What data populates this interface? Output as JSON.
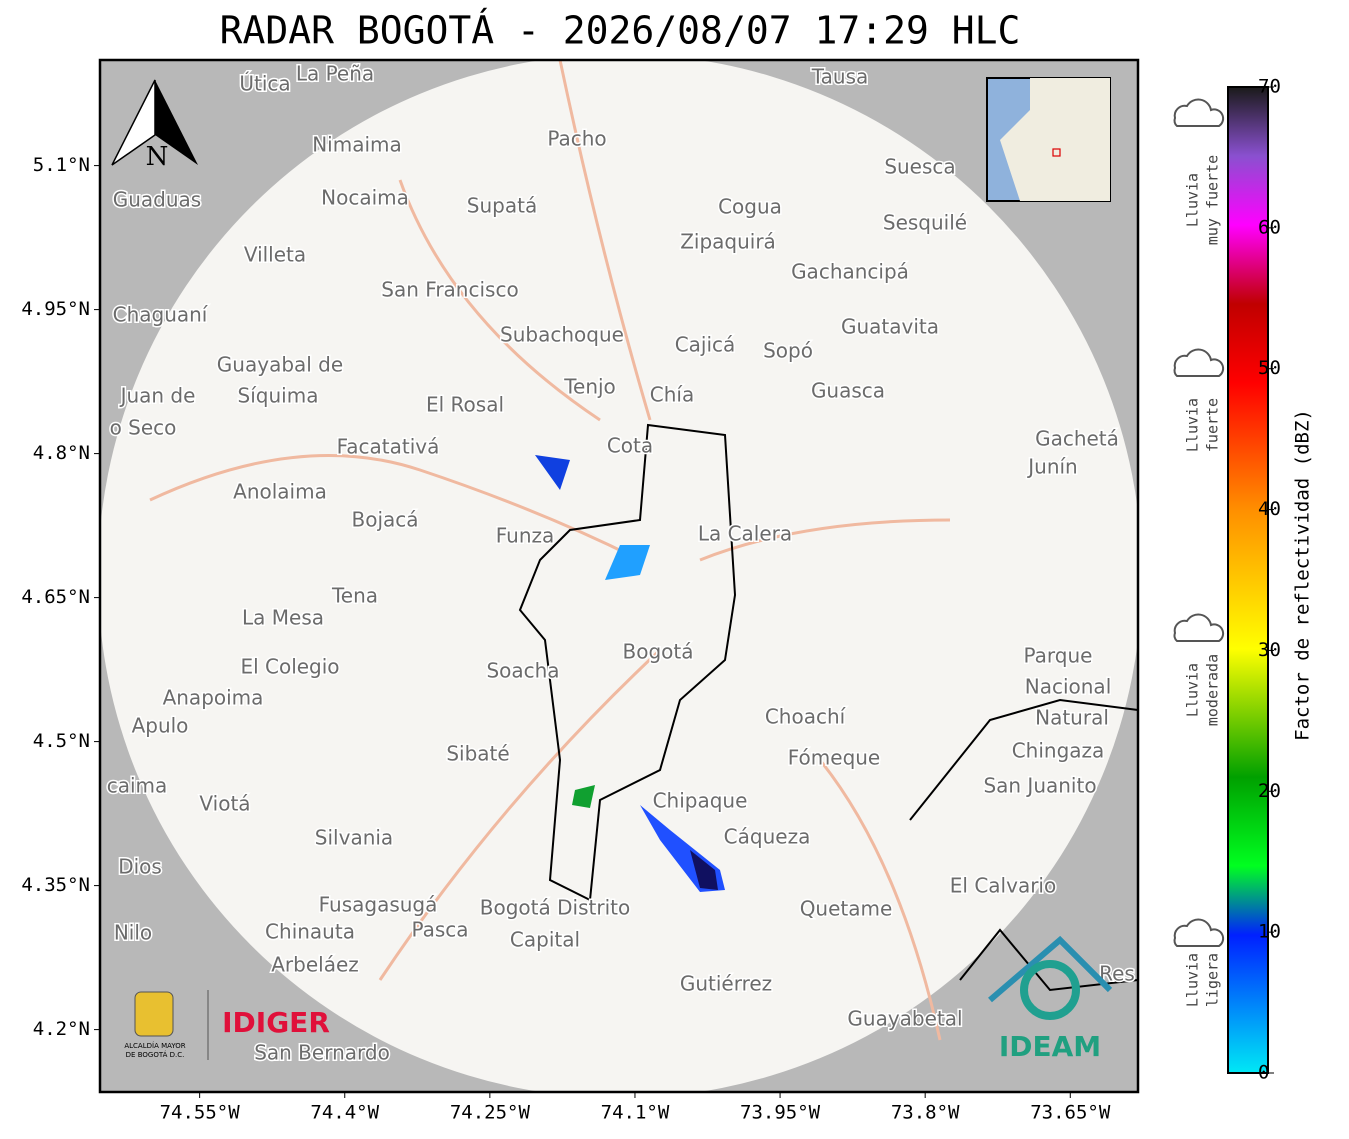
{
  "title": "RADAR BOGOTÁ - 2026/08/07 17:29 HLC",
  "north_label": "N",
  "map": {
    "xlim": [
      -74.653,
      -73.58
    ],
    "ylim": [
      4.135,
      5.21
    ],
    "xticks": [
      {
        "value": -74.55,
        "label": "74.55°W"
      },
      {
        "value": -74.4,
        "label": "74.4°W"
      },
      {
        "value": -74.25,
        "label": "74.25°W"
      },
      {
        "value": -74.1,
        "label": "74.1°W"
      },
      {
        "value": -73.95,
        "label": "73.95°W"
      },
      {
        "value": -73.8,
        "label": "73.8°W"
      },
      {
        "value": -73.65,
        "label": "73.65°W"
      }
    ],
    "yticks": [
      {
        "value": 5.1,
        "label": "5.1°N"
      },
      {
        "value": 4.95,
        "label": "4.95°N"
      },
      {
        "value": 4.8,
        "label": "4.8°N"
      },
      {
        "value": 4.65,
        "label": "4.65°N"
      },
      {
        "value": 4.5,
        "label": "4.5°N"
      },
      {
        "value": 4.35,
        "label": "4.35°N"
      },
      {
        "value": 4.2,
        "label": "4.2°N"
      }
    ],
    "grid": true
  },
  "places": [
    "Útica",
    "La Peña",
    "Tausa",
    "Pacho",
    "Nimaima",
    "Guaduas",
    "Nocaima",
    "Supatá",
    "Cogua",
    "Suesca",
    "Sesquilé",
    "Villeta",
    "Zipaquirá",
    "Gachancipá",
    "San Francisco",
    "Chaguaní",
    "Subachoque",
    "Cajicá",
    "Sopó",
    "Guatavita",
    "Guayabal de",
    "Síquima",
    "Juan de",
    "Tenjo",
    "Chía",
    "El Rosal",
    "Guasca",
    "o Seco",
    "Facatativá",
    "Cota",
    "Gachetá",
    "Junín",
    "Anolaima",
    "Bojacá",
    "Funza",
    "La Calera",
    "Tena",
    "La Mesa",
    "Bogotá",
    "Soacha",
    "Parque",
    "Nacional",
    "Natural",
    "Chingaza",
    "El Colegio",
    "Anapoima",
    "Apulo",
    "Choachí",
    "Sibaté",
    "Fómeque",
    "San Juanito",
    "caima",
    "Viotá",
    "Chipaque",
    "Silvania",
    "Cáqueza",
    "Dios",
    "El Calvario",
    "Fusagasugá",
    "Bogotá Distrito",
    "Capital",
    "Quetame",
    "Nilo",
    "Chinauta",
    "Pasca",
    "Arbeláez",
    "Res",
    "Gutiérrez",
    "Guayabetal",
    "San Bernardo"
  ],
  "colorbar": {
    "label": "Factor de reflectividad (dBZ)",
    "lim": [
      0,
      70
    ],
    "ticks": [
      0,
      10,
      20,
      30,
      40,
      50,
      60,
      70
    ]
  },
  "legend_items": [
    [
      "Lluvia",
      "muy fuerte"
    ],
    [
      "Lluvia",
      "fuerte"
    ],
    [
      "Lluvia",
      "moderada"
    ],
    [
      "Lluvia",
      "ligera"
    ]
  ],
  "logos": {
    "alcaldia": [
      "ALCALDÍA MAYOR",
      "DE BOGOTÁ D.C."
    ],
    "idiger": "IDIGER",
    "ideam": "IDEAM"
  }
}
